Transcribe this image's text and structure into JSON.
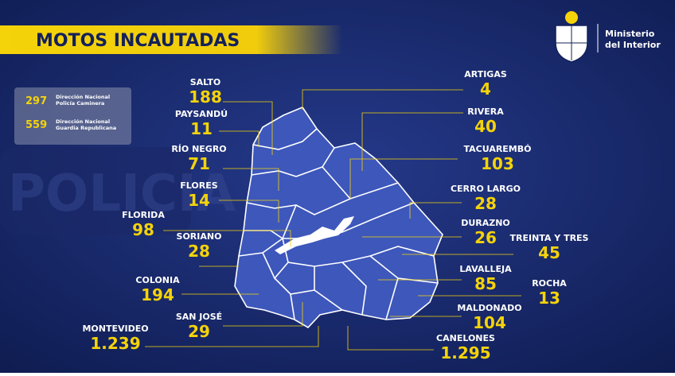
{
  "header": {
    "title": "MOTOS INCAUTADAS",
    "ministry": [
      "Ministerio",
      "del Interior"
    ]
  },
  "background_text": "POLICIA",
  "legend": [
    {
      "value": "297",
      "label": [
        "Dirección Nacional",
        "Policía Caminera"
      ]
    },
    {
      "value": "559",
      "label": [
        "Dirección Nacional",
        "Guardia Republicana"
      ]
    }
  ],
  "departments": [
    {
      "name": "SALTO",
      "value": "188"
    },
    {
      "name": "PAYSANDÚ",
      "value": "11"
    },
    {
      "name": "RÍO NEGRO",
      "value": "71"
    },
    {
      "name": "FLORES",
      "value": "14"
    },
    {
      "name": "FLORIDA",
      "value": "98"
    },
    {
      "name": "SORIANO",
      "value": "28"
    },
    {
      "name": "COLONIA",
      "value": "194"
    },
    {
      "name": "SAN JOSÉ",
      "value": "29"
    },
    {
      "name": "MONTEVIDEO",
      "value": "1.239"
    },
    {
      "name": "ARTIGAS",
      "value": "4"
    },
    {
      "name": "RIVERA",
      "value": "40"
    },
    {
      "name": "TACUAREMBÓ",
      "value": "103"
    },
    {
      "name": "CERRO LARGO",
      "value": "28"
    },
    {
      "name": "DURAZNO",
      "value": "26"
    },
    {
      "name": "TREINTA Y TRES",
      "value": "45"
    },
    {
      "name": "LAVALLEJA",
      "value": "85"
    },
    {
      "name": "ROCHA",
      "value": "13"
    },
    {
      "name": "MALDONADO",
      "value": "104"
    },
    {
      "name": "CANELONES",
      "value": "1.295"
    }
  ]
}
